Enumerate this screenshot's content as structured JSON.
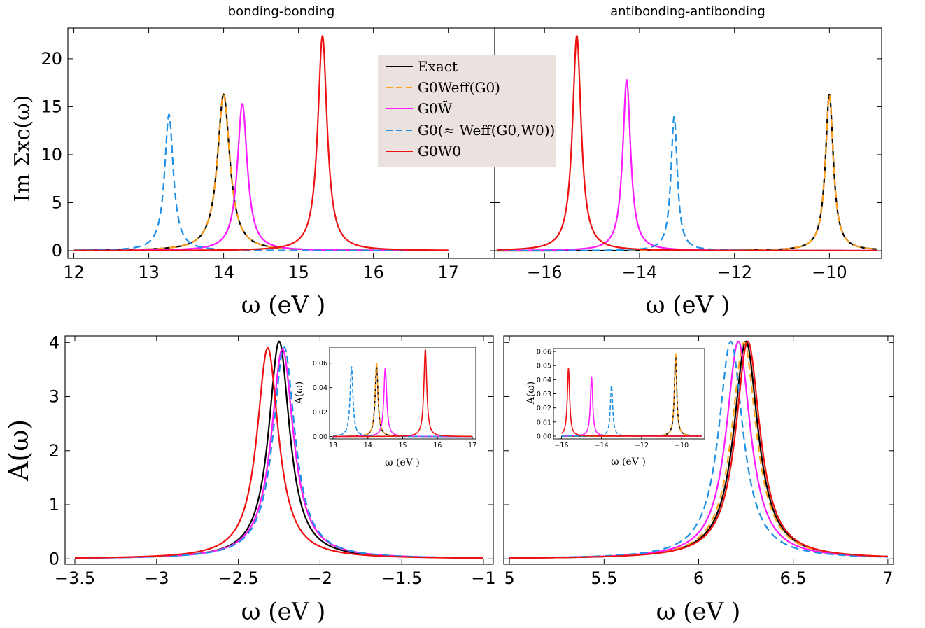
{
  "chart_data": [
    {
      "type": "line",
      "panel": "top-left",
      "title": "bonding-bonding",
      "xlabel": "ω (eV )",
      "ylabel": "Im Σxc(ω)",
      "xlim": [
        11.92,
        17.62
      ],
      "ylim": [
        -0.8,
        23.2
      ],
      "xticks": [
        12,
        13,
        14,
        15,
        16,
        17
      ],
      "yticks": [
        0,
        5,
        10,
        15,
        20
      ],
      "x_range": [
        12,
        17
      ],
      "series": [
        {
          "name": "Exact",
          "color": "#000000",
          "dash": "solid",
          "peaks": [
            {
              "x": 14.0,
              "h": 16.3,
              "w": 0.1
            }
          ]
        },
        {
          "name": "G0Weff(G0)",
          "color": "#ff9f1a",
          "dash": "dash",
          "peaks": [
            {
              "x": 14.0,
              "h": 16.2,
              "w": 0.1
            }
          ]
        },
        {
          "name": "G0W̃",
          "color": "#ff1aff",
          "dash": "solid",
          "peaks": [
            {
              "x": 14.25,
              "h": 15.3,
              "w": 0.08
            }
          ]
        },
        {
          "name": "G0(≈ Weff(G0,W0))",
          "color": "#1e90e6",
          "dash": "dash",
          "peaks": [
            {
              "x": 13.27,
              "h": 14.2,
              "w": 0.07
            }
          ]
        },
        {
          "name": "G0W0",
          "color": "#ee1111",
          "dash": "solid",
          "peaks": [
            {
              "x": 15.32,
              "h": 22.4,
              "w": 0.075
            }
          ]
        }
      ]
    },
    {
      "type": "line",
      "panel": "top-right",
      "title": "antibonding-antibonding",
      "xlabel": "ω (eV )",
      "ylabel": "",
      "xlim": [
        -17.05,
        -8.9
      ],
      "ylim": [
        -0.8,
        23.2
      ],
      "xticks": [
        -16,
        -14,
        -12,
        -10
      ],
      "yticks": [
        0,
        5,
        10,
        15,
        20
      ],
      "x_range": [
        -17.0,
        -9.0
      ],
      "series": [
        {
          "name": "Exact",
          "color": "#000000",
          "dash": "solid",
          "peaks": [
            {
              "x": -10.0,
              "h": 16.3,
              "w": 0.1
            }
          ]
        },
        {
          "name": "G0Weff(G0)",
          "color": "#ff9f1a",
          "dash": "dash",
          "peaks": [
            {
              "x": -10.0,
              "h": 16.2,
              "w": 0.1
            }
          ]
        },
        {
          "name": "G0W̃",
          "color": "#ff1aff",
          "dash": "solid",
          "peaks": [
            {
              "x": -14.27,
              "h": 17.8,
              "w": 0.1
            }
          ]
        },
        {
          "name": "G0(≈ Weff(G0,W0))",
          "color": "#1e90e6",
          "dash": "dash",
          "peaks": [
            {
              "x": -13.27,
              "h": 14.0,
              "w": 0.08
            }
          ]
        },
        {
          "name": "G0W0",
          "color": "#ee1111",
          "dash": "solid",
          "peaks": [
            {
              "x": -15.32,
              "h": 22.4,
              "w": 0.11
            }
          ]
        }
      ]
    },
    {
      "type": "line",
      "panel": "bottom-left",
      "title": "",
      "xlabel": "ω (eV )",
      "ylabel": "A(ω)",
      "xlim": [
        -3.56,
        -0.94
      ],
      "ylim": [
        -0.1,
        4.12
      ],
      "xticks": [
        -3.5,
        -3.0,
        -2.5,
        -2.0,
        -1.5,
        -1.0
      ],
      "yticks": [
        0,
        1,
        2,
        3,
        4
      ],
      "x_range": [
        -3.5,
        -1.0
      ],
      "series": [
        {
          "name": "Exact",
          "color": "#000000",
          "dash": "solid",
          "peaks": [
            {
              "x": -2.25,
              "h": 4.02,
              "w": 0.078
            }
          ]
        },
        {
          "name": "G0Weff(G0)",
          "color": "#ff9f1a",
          "dash": "dash",
          "peaks": [
            {
              "x": -2.23,
              "h": 3.88,
              "w": 0.082
            }
          ]
        },
        {
          "name": "G0W̃",
          "color": "#ff1aff",
          "dash": "solid",
          "peaks": [
            {
              "x": -2.23,
              "h": 3.88,
              "w": 0.082
            }
          ]
        },
        {
          "name": "G0(≈ Weff(G0,W0))",
          "color": "#1e90e6",
          "dash": "dash",
          "peaks": [
            {
              "x": -2.22,
              "h": 3.92,
              "w": 0.081
            }
          ]
        },
        {
          "name": "G0W0",
          "color": "#ee1111",
          "dash": "solid",
          "peaks": [
            {
              "x": -2.32,
              "h": 3.9,
              "w": 0.08
            }
          ]
        }
      ]
    },
    {
      "type": "line",
      "panel": "bottom-right",
      "title": "",
      "xlabel": "ω (eV )",
      "ylabel": "",
      "xlim": [
        4.97,
        7.03
      ],
      "ylim": [
        -0.1,
        4.12
      ],
      "xticks": [
        5.0,
        5.5,
        6.0,
        6.5,
        7.0
      ],
      "yticks": [
        0,
        1,
        2,
        3,
        4
      ],
      "x_range": [
        5.0,
        7.0
      ],
      "series": [
        {
          "name": "Exact",
          "color": "#000000",
          "dash": "solid",
          "peaks": [
            {
              "x": 6.25,
              "h": 4.02,
              "w": 0.078
            }
          ]
        },
        {
          "name": "G0Weff(G0)",
          "color": "#ff9f1a",
          "dash": "dash",
          "peaks": [
            {
              "x": 6.24,
              "h": 4.0,
              "w": 0.079
            }
          ]
        },
        {
          "name": "G0W̃",
          "color": "#ff1aff",
          "dash": "solid",
          "peaks": [
            {
              "x": 6.21,
              "h": 4.02,
              "w": 0.078
            }
          ]
        },
        {
          "name": "G0(≈ Weff(G0,W0))",
          "color": "#1e90e6",
          "dash": "dash",
          "peaks": [
            {
              "x": 6.17,
              "h": 4.02,
              "w": 0.078
            }
          ]
        },
        {
          "name": "G0W0",
          "color": "#ee1111",
          "dash": "solid",
          "peaks": [
            {
              "x": 6.26,
              "h": 4.02,
              "w": 0.078
            }
          ]
        }
      ]
    },
    {
      "type": "line",
      "panel": "inset-bottom-left",
      "title": "",
      "xlabel": "ω (eV )",
      "ylabel": "A(ω)",
      "xlim": [
        12.9,
        17.1
      ],
      "ylim": [
        -0.002,
        0.073
      ],
      "xticks": [
        13,
        14,
        15,
        16,
        17
      ],
      "yticks": [
        0.0,
        0.02,
        0.04,
        0.06
      ],
      "ytick_labels": [
        "0.00",
        "0.02",
        "0.04",
        "0.06"
      ],
      "x_range": [
        13.0,
        17.0
      ],
      "series": [
        {
          "name": "Exact",
          "color": "#000000",
          "dash": "solid",
          "peaks": [
            {
              "x": 14.25,
              "h": 0.058,
              "w": 0.05
            }
          ]
        },
        {
          "name": "G0Weff(G0)",
          "color": "#ff9f1a",
          "dash": "dash",
          "peaks": [
            {
              "x": 14.25,
              "h": 0.06,
              "w": 0.05
            }
          ]
        },
        {
          "name": "G0W̃",
          "color": "#ff1aff",
          "dash": "solid",
          "peaks": [
            {
              "x": 14.5,
              "h": 0.056,
              "w": 0.05
            }
          ]
        },
        {
          "name": "G0(≈ Weff(G0,W0))",
          "color": "#1e90e6",
          "dash": "dash",
          "peaks": [
            {
              "x": 13.53,
              "h": 0.057,
              "w": 0.05
            }
          ]
        },
        {
          "name": "G0W0",
          "color": "#ee1111",
          "dash": "solid",
          "peaks": [
            {
              "x": 15.65,
              "h": 0.071,
              "w": 0.05
            }
          ]
        }
      ]
    },
    {
      "type": "line",
      "panel": "inset-bottom-right",
      "title": "",
      "xlabel": "ω (eV )",
      "ylabel": "A(ω)",
      "xlim": [
        -16.4,
        -8.85
      ],
      "ylim": [
        -0.002,
        0.062
      ],
      "xticks": [
        -16,
        -14,
        -12,
        -10
      ],
      "yticks": [
        0.0,
        0.01,
        0.02,
        0.03,
        0.04,
        0.05,
        0.06
      ],
      "ytick_labels": [
        "0.00",
        "0.01",
        "0.02",
        "0.03",
        "0.04",
        "0.05",
        "0.06"
      ],
      "x_range": [
        -16.0,
        -9.0
      ],
      "series": [
        {
          "name": "Exact",
          "color": "#000000",
          "dash": "solid",
          "peaks": [
            {
              "x": -10.3,
              "h": 0.058,
              "w": 0.07
            }
          ]
        },
        {
          "name": "G0Weff(G0)",
          "color": "#ff9f1a",
          "dash": "dash",
          "peaks": [
            {
              "x": -10.3,
              "h": 0.059,
              "w": 0.07
            }
          ]
        },
        {
          "name": "G0W̃",
          "color": "#ff1aff",
          "dash": "solid",
          "peaks": [
            {
              "x": -14.5,
              "h": 0.042,
              "w": 0.07
            }
          ]
        },
        {
          "name": "G0(≈ Weff(G0,W0))",
          "color": "#1e90e6",
          "dash": "dash",
          "peaks": [
            {
              "x": -13.5,
              "h": 0.036,
              "w": 0.07
            }
          ]
        },
        {
          "name": "G0W0",
          "color": "#ee1111",
          "dash": "solid",
          "peaks": [
            {
              "x": -15.65,
              "h": 0.048,
              "w": 0.07
            }
          ]
        }
      ]
    }
  ],
  "legend": {
    "placement": "top-center",
    "background": "#ebe1df",
    "entries": [
      "Exact",
      "G0Weff(G0)",
      "G0W̃",
      "G0(≈ Weff(G0,W0))",
      "G0W0"
    ]
  }
}
